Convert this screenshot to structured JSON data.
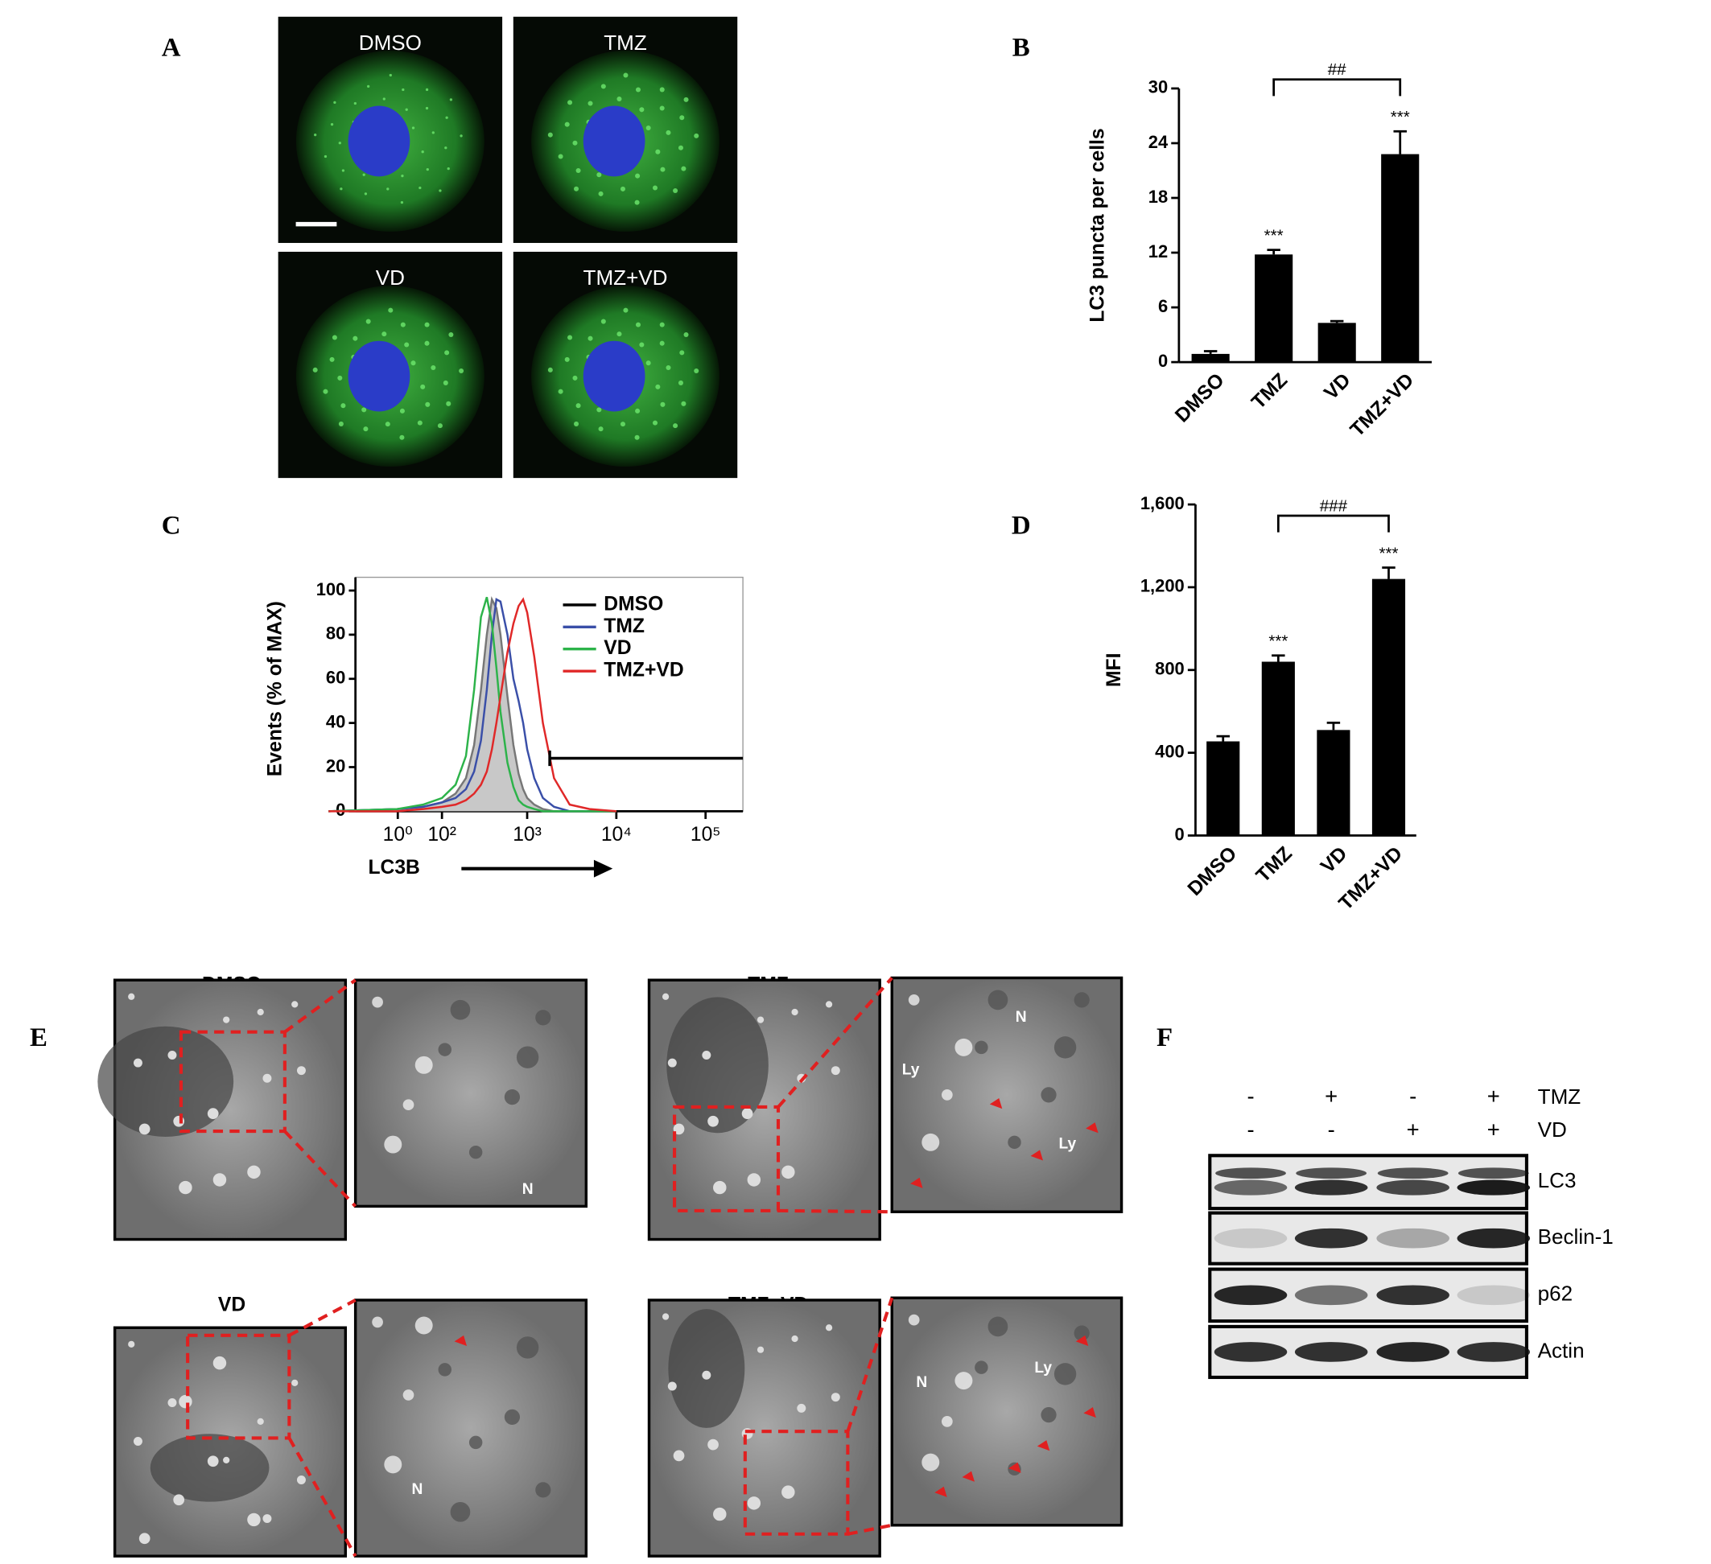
{
  "chart_data": [
    {
      "type": "bar",
      "y_label": "LC3 puncta per cells",
      "categories": [
        "DMSO",
        "TMZ",
        "VD",
        "TMZ+VD"
      ],
      "values": [
        0.9,
        11.8,
        4.3,
        22.8
      ],
      "errors": [
        0.3,
        0.5,
        0.2,
        2.5
      ],
      "color": "#000000",
      "ylim": [
        0,
        30
      ],
      "yticks": [
        0,
        6,
        12,
        18,
        24,
        30
      ],
      "significance": [
        null,
        "***",
        null,
        "***"
      ],
      "comparison": {
        "label": "##",
        "between": [
          "TMZ",
          "TMZ+VD"
        ]
      }
    },
    {
      "type": "line",
      "y_label": "Events (% of MAX)",
      "x_label": "LC3B",
      "xscale": "asinh",
      "x": [
        -200,
        0,
        50,
        100,
        150,
        200,
        250,
        300,
        350,
        400,
        450,
        500,
        600,
        700,
        800,
        900,
        1000,
        1200,
        1500,
        2000,
        3000,
        5000,
        10000
      ],
      "series": [
        {
          "name": "DMSO",
          "color": "#000000",
          "fill": "#c8c8c8",
          "values": [
            0,
            1,
            2,
            4,
            8,
            15,
            30,
            55,
            80,
            96,
            92,
            80,
            52,
            30,
            17,
            10,
            6,
            3,
            1,
            0,
            0,
            0,
            0
          ]
        },
        {
          "name": "TMZ",
          "color": "#3a4fa8",
          "values": [
            0,
            1,
            2,
            4,
            6,
            10,
            18,
            32,
            55,
            80,
            96,
            95,
            80,
            60,
            50,
            40,
            28,
            15,
            6,
            2,
            0,
            0,
            0
          ]
        },
        {
          "name": "VD",
          "color": "#2db34a",
          "values": [
            0,
            1,
            3,
            6,
            12,
            25,
            55,
            88,
            97,
            85,
            65,
            45,
            22,
            11,
            5,
            3,
            2,
            1,
            0,
            0,
            0,
            0,
            0
          ]
        },
        {
          "name": "TMZ+VD",
          "color": "#e02828",
          "values": [
            0,
            0,
            1,
            2,
            3,
            5,
            8,
            12,
            18,
            28,
            40,
            52,
            72,
            85,
            93,
            96,
            90,
            70,
            40,
            15,
            3,
            1,
            0
          ]
        }
      ],
      "xlim": [
        -91,
        262144
      ],
      "xticks": [
        {
          "value": 1,
          "label": "10⁰"
        },
        {
          "value": 100,
          "label": "10²"
        },
        {
          "value": 1000,
          "label": "10³"
        },
        {
          "value": 10000,
          "label": "10⁴"
        },
        {
          "value": 100000,
          "label": "10⁵"
        }
      ],
      "ylim": [
        0,
        106
      ],
      "yticks": [
        0,
        20,
        40,
        60,
        80,
        100
      ],
      "legend": "upper right"
    },
    {
      "type": "bar",
      "y_label": "MFI",
      "categories": [
        "DMSO",
        "TMZ",
        "VD",
        "TMZ+VD"
      ],
      "values": [
        455,
        840,
        510,
        1240
      ],
      "errors": [
        25,
        30,
        35,
        55
      ],
      "color": "#000000",
      "ylim": [
        0,
        1600
      ],
      "yticks": [
        0,
        400,
        800,
        {
          "value": 1200,
          "label": "1,200"
        },
        {
          "value": 1600,
          "label": "1,600"
        }
      ],
      "significance": [
        null,
        "***",
        null,
        "***"
      ],
      "comparison": {
        "label": "###",
        "between": [
          "TMZ",
          "TMZ+VD"
        ]
      }
    }
  ],
  "figure": {
    "panel_labels": [
      "A",
      "B",
      "C",
      "D",
      "E",
      "F"
    ],
    "micrographs": [
      "DMSO",
      "TMZ",
      "VD",
      "TMZ+VD"
    ],
    "em": {
      "titles": [
        "DMSO",
        "TMZ",
        "VD",
        "TMZ+VD"
      ],
      "labels": [
        "N",
        "N",
        "Ly",
        "Ly",
        "N",
        "N",
        "Ly"
      ]
    },
    "blot": {
      "treatments": [
        {
          "name": "TMZ",
          "signs": [
            "-",
            "+",
            "-",
            "+"
          ]
        },
        {
          "name": "VD",
          "signs": [
            "-",
            "-",
            "+",
            "+"
          ]
        }
      ],
      "proteins": [
        "LC3",
        "Beclin-1",
        "p62",
        "Actin"
      ]
    }
  }
}
